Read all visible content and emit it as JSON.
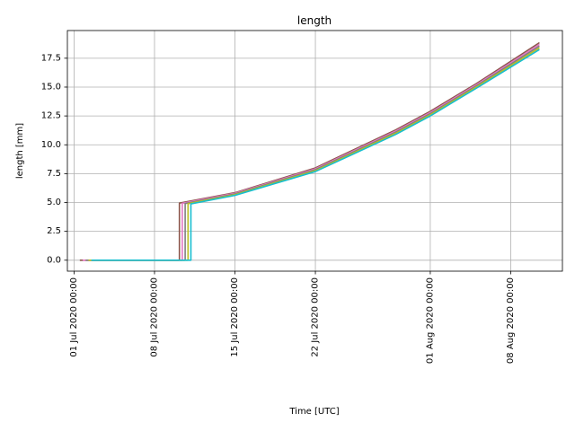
{
  "chart_data": {
    "type": "line",
    "title": "length",
    "xlabel": "Time  [UTC]",
    "ylabel": "length  [mm]",
    "x_ticks": [
      "2020-07-01",
      "2020-07-08",
      "2020-07-15",
      "2020-07-22",
      "2020-08-01",
      "2020-08-08"
    ],
    "x_tick_labels": [
      "01 Jul 2020 00:00",
      "08 Jul 2020 00:00",
      "15 Jul 2020 00:00",
      "22 Jul 2020 00:00",
      "01 Aug 2020 00:00",
      "08 Aug 2020 00:00"
    ],
    "y_ticks": [
      0.0,
      2.5,
      5.0,
      7.5,
      10.0,
      12.5,
      15.0,
      17.5
    ],
    "y_tick_labels": [
      "0.0",
      "2.5",
      "5.0",
      "7.5",
      "10.0",
      "12.5",
      "15.0",
      "17.5"
    ],
    "xlim": [
      "2020-06-30T10:00",
      "2020-08-12T12:00"
    ],
    "ylim": [
      -0.95,
      19.9
    ],
    "grid": true,
    "legend": "none",
    "series_colors": [
      "#8c564b",
      "#e377c2",
      "#7f7f7f",
      "#bcbd22",
      "#17becf"
    ],
    "series": [
      {
        "x": [
          "2020-07-01T12:00",
          "2020-07-10T04:00",
          "2020-07-10T04:00",
          "2020-07-15T00:00",
          "2020-07-22T00:00",
          "2020-07-29T00:00",
          "2020-08-01T00:00",
          "2020-08-05T00:00",
          "2020-08-10T12:00"
        ],
        "values": [
          0.0,
          0.0,
          4.95,
          5.85,
          8.0,
          11.3,
          12.9,
          15.3,
          18.85
        ]
      },
      {
        "x": [
          "2020-07-01T18:00",
          "2020-07-10T10:00",
          "2020-07-10T10:00",
          "2020-07-15T00:00",
          "2020-07-22T00:00",
          "2020-07-29T00:00",
          "2020-08-01T00:00",
          "2020-08-05T00:00",
          "2020-08-10T12:00"
        ],
        "values": [
          0.0,
          0.0,
          4.93,
          5.8,
          7.92,
          11.2,
          12.8,
          15.2,
          18.7
        ]
      },
      {
        "x": [
          "2020-07-02T00:00",
          "2020-07-10T16:00",
          "2020-07-10T16:00",
          "2020-07-15T00:00",
          "2020-07-22T00:00",
          "2020-07-29T00:00",
          "2020-08-01T00:00",
          "2020-08-05T00:00",
          "2020-08-10T12:00"
        ],
        "values": [
          0.0,
          0.0,
          4.91,
          5.74,
          7.84,
          11.1,
          12.7,
          15.1,
          18.55
        ]
      },
      {
        "x": [
          "2020-07-02T06:00",
          "2020-07-10T22:00",
          "2020-07-10T22:00",
          "2020-07-15T00:00",
          "2020-07-22T00:00",
          "2020-07-29T00:00",
          "2020-08-01T00:00",
          "2020-08-05T00:00",
          "2020-08-10T12:00"
        ],
        "values": [
          0.0,
          0.0,
          4.9,
          5.68,
          7.76,
          11.0,
          12.6,
          15.0,
          18.4
        ]
      },
      {
        "x": [
          "2020-07-02T12:00",
          "2020-07-11T04:00",
          "2020-07-11T04:00",
          "2020-07-15T00:00",
          "2020-07-22T00:00",
          "2020-07-29T00:00",
          "2020-08-01T00:00",
          "2020-08-05T00:00",
          "2020-08-10T12:00"
        ],
        "values": [
          0.0,
          0.0,
          4.88,
          5.62,
          7.68,
          10.9,
          12.5,
          14.9,
          18.25
        ]
      }
    ]
  }
}
